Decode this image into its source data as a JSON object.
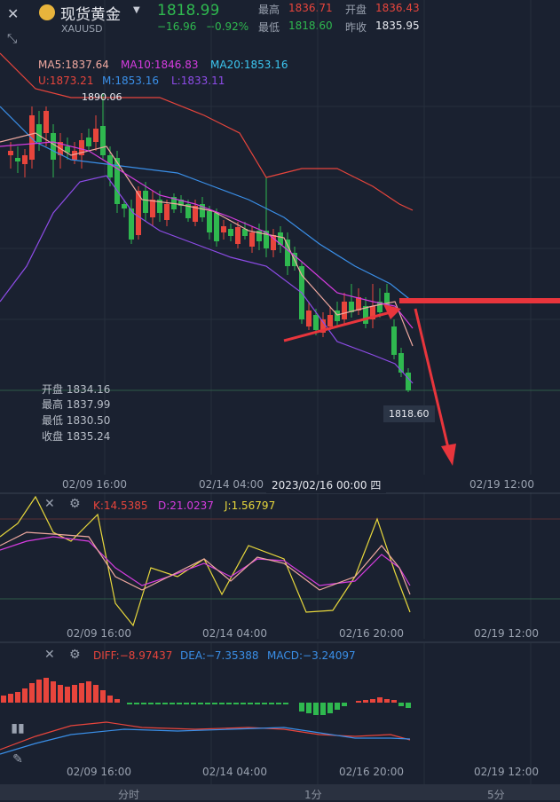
{
  "header": {
    "name": "现货黄金",
    "code": "XAUUSD",
    "price": "1818.99",
    "change": "−16.96",
    "change_pct": "−0.92%",
    "high_label": "最高",
    "high": "1836.71",
    "open_label": "开盘",
    "open": "1836.43",
    "low_label": "最低",
    "low": "1818.60",
    "prev_label": "昨收",
    "prev": "1835.95"
  },
  "main_chart": {
    "ma5": "MA5:1837.64",
    "ma10": "MA10:1846.83",
    "ma20": "MA20:1853.16",
    "boll_u": "U:1873.21",
    "boll_m": "M:1853.16",
    "boll_l": "L:1833.11",
    "max_label": "1890.06",
    "min_label": "1818.60",
    "ohlc": {
      "open": "开盘 1834.16",
      "high": "最高 1837.99",
      "low": "最低 1830.50",
      "close": "收盘 1835.24"
    },
    "x_labels": [
      "02/09 16:00",
      "02/14 04:00",
      "02/19 12:00"
    ],
    "crosshair_date": "2023/02/16 00:00 四"
  },
  "kdj": {
    "k": "K:14.5385",
    "d": "D:21.0237",
    "j": "J:1.56797",
    "x_labels": [
      "02/09 16:00",
      "02/14 04:00",
      "02/16 20:00",
      "02/19 12:00"
    ]
  },
  "macd": {
    "diff": "DIFF:−8.97437",
    "dea": "DEA:−7.35388",
    "macd": "MACD:−3.24097",
    "x_labels": [
      "02/09 16:00",
      "02/14 04:00",
      "02/16 20:00",
      "02/19 12:00"
    ]
  },
  "tabs": [
    "分时",
    "1分",
    "5分"
  ],
  "colors": {
    "up": "#e8453c",
    "down": "#2fb84f",
    "ma5": "#f0a9a0",
    "ma10": "#d63ce0",
    "ma20": "#3cc6f0",
    "boll_u": "#e8453c",
    "boll_m": "#3a8fe8",
    "boll_l": "#8e4ce8",
    "arrow": "#e8353c"
  }
}
